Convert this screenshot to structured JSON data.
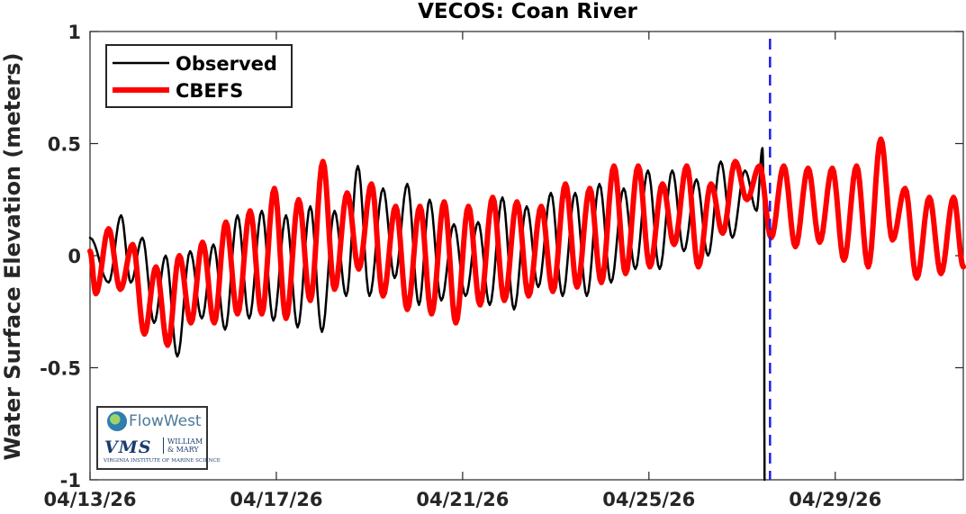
{
  "chart_data": {
    "type": "line",
    "title": "VECOS: Coan River",
    "ylabel": "Water Surface Elevation (meters)",
    "xlabel": "",
    "x_start": "2026-04-13T00:00",
    "x_range": [
      "2026-04-13T00:00",
      "2026-05-01T18:00"
    ],
    "ylim": [
      -1,
      1
    ],
    "yticks": [
      {
        "value": 1,
        "label": "1"
      },
      {
        "value": 0.5,
        "label": "0.5"
      },
      {
        "value": 0,
        "label": "0"
      },
      {
        "value": -0.5,
        "label": "-0.5"
      },
      {
        "value": -1,
        "label": "-1"
      }
    ],
    "xticks": [
      {
        "value": "2026-04-13T00:00",
        "label": "04/13/26"
      },
      {
        "value": "2026-04-17T00:00",
        "label": "04/17/26"
      },
      {
        "value": "2026-04-21T00:00",
        "label": "04/21/26"
      },
      {
        "value": "2026-04-25T00:00",
        "label": "04/25/26"
      },
      {
        "value": "2026-04-29T00:00",
        "label": "04/29/26"
      }
    ],
    "grid": false,
    "legend_position": "top-left",
    "nowcast_marker": {
      "x": "2026-04-27T14:24",
      "color": "#1f1fe6",
      "style": "dashed"
    },
    "series": [
      {
        "name": "Observed",
        "color": "#000000",
        "x": [
          "2026-04-13T00:00",
          "2026-04-13T09:36",
          "2026-04-13T16:00",
          "2026-04-13T21:00",
          "2026-04-14T03:00",
          "2026-04-14T09:00",
          "2026-04-14T15:00",
          "2026-04-14T21:00",
          "2026-04-15T03:36",
          "2026-04-15T09:36",
          "2026-04-15T15:36",
          "2026-04-15T21:36",
          "2026-04-16T04:00",
          "2026-04-16T10:00",
          "2026-04-16T16:30",
          "2026-04-16T22:30",
          "2026-04-17T05:00",
          "2026-04-17T11:00",
          "2026-04-17T17:30",
          "2026-04-17T23:30",
          "2026-04-18T06:00",
          "2026-04-18T12:00",
          "2026-04-18T18:00",
          "2026-04-19T00:00",
          "2026-04-19T07:00",
          "2026-04-19T13:00",
          "2026-04-19T19:30",
          "2026-04-20T01:30",
          "2026-04-20T07:00",
          "2026-04-20T13:00",
          "2026-04-20T19:30",
          "2026-04-21T01:30",
          "2026-04-21T08:00",
          "2026-04-21T14:00",
          "2026-04-21T20:30",
          "2026-04-22T02:30",
          "2026-04-22T09:00",
          "2026-04-22T15:00",
          "2026-04-22T21:30",
          "2026-04-23T03:30",
          "2026-04-23T10:00",
          "2026-04-23T16:00",
          "2026-04-23T22:30",
          "2026-04-24T04:30",
          "2026-04-24T11:00",
          "2026-04-24T17:00",
          "2026-04-24T23:30",
          "2026-04-25T05:30",
          "2026-04-25T12:00",
          "2026-04-25T18:00",
          "2026-04-26T00:30",
          "2026-04-26T06:30",
          "2026-04-26T13:00",
          "2026-04-26T19:00",
          "2026-04-27T01:30",
          "2026-04-27T07:30",
          "2026-04-27T10:30",
          "2026-04-27T11:24",
          "2026-04-27T11:30",
          "2026-04-27T11:36"
        ],
        "y": [
          0.08,
          -0.12,
          0.18,
          -0.12,
          0.08,
          -0.3,
          0.0,
          -0.45,
          0.02,
          -0.28,
          0.05,
          -0.33,
          0.18,
          -0.28,
          0.2,
          -0.29,
          0.18,
          -0.32,
          0.22,
          -0.34,
          0.2,
          -0.18,
          0.4,
          -0.18,
          0.3,
          -0.1,
          0.32,
          -0.22,
          0.25,
          -0.2,
          0.14,
          -0.18,
          0.15,
          -0.22,
          0.26,
          -0.24,
          0.22,
          -0.14,
          0.28,
          -0.18,
          0.28,
          -0.18,
          0.32,
          -0.12,
          0.3,
          -0.06,
          0.38,
          -0.06,
          0.38,
          0.02,
          0.34,
          0.0,
          0.42,
          0.08,
          0.38,
          0.2,
          0.48,
          0.2,
          -0.8,
          -1.0
        ]
      },
      {
        "name": "CBEFS",
        "color": "#ff0000",
        "x": [
          "2026-04-13T00:00",
          "2026-04-13T03:00",
          "2026-04-13T09:36",
          "2026-04-13T15:36",
          "2026-04-13T22:00",
          "2026-04-14T04:00",
          "2026-04-14T10:00",
          "2026-04-14T16:00",
          "2026-04-14T22:00",
          "2026-04-15T04:00",
          "2026-04-15T10:00",
          "2026-04-15T16:00",
          "2026-04-15T22:00",
          "2026-04-16T04:00",
          "2026-04-16T10:30",
          "2026-04-16T16:30",
          "2026-04-16T23:00",
          "2026-04-17T05:00",
          "2026-04-17T11:30",
          "2026-04-17T17:30",
          "2026-04-18T00:00",
          "2026-04-18T06:00",
          "2026-04-18T12:30",
          "2026-04-18T18:30",
          "2026-04-19T01:00",
          "2026-04-19T07:00",
          "2026-04-19T13:30",
          "2026-04-19T19:30",
          "2026-04-20T02:00",
          "2026-04-20T08:00",
          "2026-04-20T14:30",
          "2026-04-20T20:30",
          "2026-04-21T03:00",
          "2026-04-21T09:00",
          "2026-04-21T15:30",
          "2026-04-21T21:30",
          "2026-04-22T04:00",
          "2026-04-22T10:00",
          "2026-04-22T16:30",
          "2026-04-22T22:30",
          "2026-04-23T05:00",
          "2026-04-23T11:00",
          "2026-04-23T17:30",
          "2026-04-23T23:30",
          "2026-04-24T06:00",
          "2026-04-24T12:00",
          "2026-04-24T18:30",
          "2026-04-25T00:30",
          "2026-04-25T07:00",
          "2026-04-25T13:00",
          "2026-04-25T19:30",
          "2026-04-26T01:30",
          "2026-04-26T08:00",
          "2026-04-26T14:00",
          "2026-04-26T20:30",
          "2026-04-27T02:30",
          "2026-04-27T09:00",
          "2026-04-27T15:00",
          "2026-04-27T21:30",
          "2026-04-28T03:30",
          "2026-04-28T10:00",
          "2026-04-28T16:00",
          "2026-04-28T22:30",
          "2026-04-29T04:30",
          "2026-04-29T11:00",
          "2026-04-29T17:00",
          "2026-04-29T23:30",
          "2026-04-30T05:30",
          "2026-04-30T12:00",
          "2026-04-30T18:00",
          "2026-05-01T00:30",
          "2026-05-01T06:30",
          "2026-05-01T13:00",
          "2026-05-01T18:00"
        ],
        "y": [
          0.02,
          -0.17,
          0.12,
          -0.15,
          0.05,
          -0.35,
          -0.05,
          -0.4,
          0.0,
          -0.3,
          0.06,
          -0.3,
          0.15,
          -0.26,
          0.2,
          -0.26,
          0.3,
          -0.28,
          0.25,
          -0.2,
          0.42,
          -0.15,
          0.28,
          -0.06,
          0.32,
          -0.18,
          0.22,
          -0.24,
          0.22,
          -0.26,
          0.24,
          -0.3,
          0.22,
          -0.22,
          0.26,
          -0.2,
          0.24,
          -0.18,
          0.22,
          -0.16,
          0.32,
          -0.14,
          0.3,
          -0.12,
          0.4,
          -0.08,
          0.4,
          -0.05,
          0.32,
          0.05,
          0.4,
          -0.05,
          0.32,
          0.1,
          0.42,
          0.25,
          0.4,
          0.08,
          0.4,
          0.04,
          0.39,
          0.06,
          0.39,
          -0.02,
          0.4,
          -0.05,
          0.52,
          0.07,
          0.3,
          -0.1,
          0.26,
          -0.08,
          0.26,
          -0.05
        ]
      }
    ]
  },
  "logo": {
    "flowwest_label": "FlowWest",
    "vms_label": "VMS",
    "wm_label": "WILLIAM & MARY",
    "vims_label": "VIRGINIA INSTITUTE OF MARINE SCIENCE"
  }
}
